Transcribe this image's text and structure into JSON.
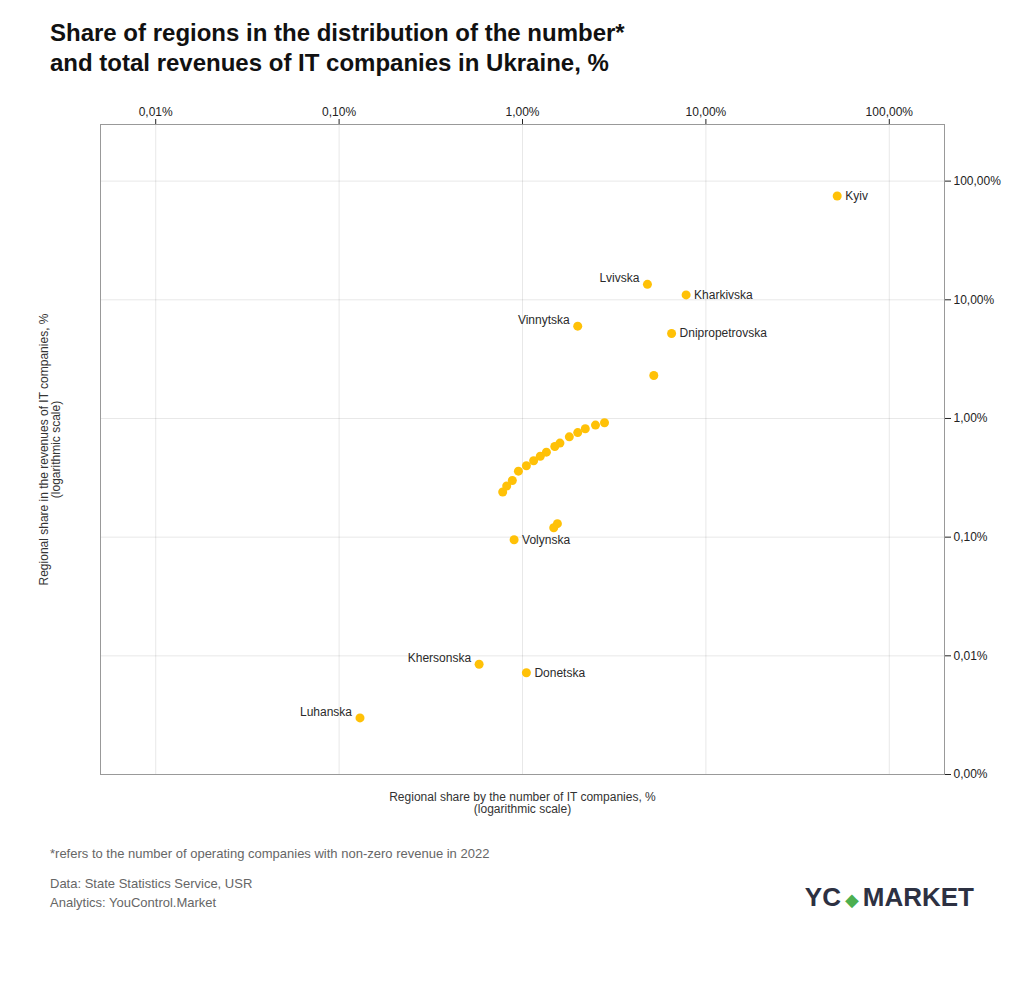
{
  "chart_data": {
    "type": "scatter",
    "title": "Share of regions in the distribution of the number*\nand total revenues of IT companies in Ukraine, %",
    "xlabel": "Regional share by the number of IT companies, %\n(logarithmic scale)",
    "ylabel": "Regional share in the revenues of IT companies, %\n(logarithmic scale)",
    "x": [
      52.0,
      4.8,
      7.8,
      2.0,
      6.5,
      5.2,
      2.8,
      2.5,
      2.2,
      2.0,
      1.8,
      1.6,
      1.5,
      1.35,
      1.25,
      1.15,
      1.05,
      0.95,
      0.88,
      0.82,
      0.78,
      1.55,
      1.48,
      0.9,
      0.58,
      1.05,
      0.13
    ],
    "values": [
      75.0,
      13.5,
      11.0,
      6.0,
      5.2,
      2.3,
      0.92,
      0.88,
      0.82,
      0.76,
      0.7,
      0.62,
      0.58,
      0.52,
      0.48,
      0.44,
      0.4,
      0.36,
      0.3,
      0.27,
      0.24,
      0.13,
      0.12,
      0.095,
      0.0085,
      0.0072,
      0.003
    ],
    "point_labels": [
      "Kyiv",
      "Lvivska",
      "Kharkivska",
      "Vinnytska",
      "Dnipropetrovska",
      null,
      null,
      null,
      null,
      null,
      null,
      null,
      null,
      null,
      null,
      null,
      null,
      null,
      null,
      null,
      null,
      null,
      null,
      "Volynska",
      "Khersonska",
      "Donetska",
      "Luhanska"
    ],
    "color": "#FFC107",
    "log": true,
    "grid": true,
    "xlim": [
      0.005,
      200.0
    ],
    "ylim": [
      0.001,
      300.0
    ],
    "xticks": [
      {
        "value": 0.01,
        "label": "0,01%"
      },
      {
        "value": 0.1,
        "label": "0,10%"
      },
      {
        "value": 1.0,
        "label": "1,00%"
      },
      {
        "value": 10.0,
        "label": "10,00%"
      },
      {
        "value": 100.0,
        "label": "100,00%"
      }
    ],
    "yticks": [
      {
        "value": 0.001,
        "label": "0,00%"
      },
      {
        "value": 0.01,
        "label": "0,01%"
      },
      {
        "value": 0.1,
        "label": "0,10%"
      },
      {
        "value": 1.0,
        "label": "1,00%"
      },
      {
        "value": 10.0,
        "label": "10,00%"
      },
      {
        "value": 100.0,
        "label": "100,00%"
      }
    ],
    "footnote": "*refers to the number of operating companies with non-zero revenue in 2022",
    "source": [
      "Data: State Statistics Service, USR",
      "Analytics: YouControl.Market"
    ],
    "logo": [
      "YC",
      "◆",
      "MARKET"
    ]
  }
}
